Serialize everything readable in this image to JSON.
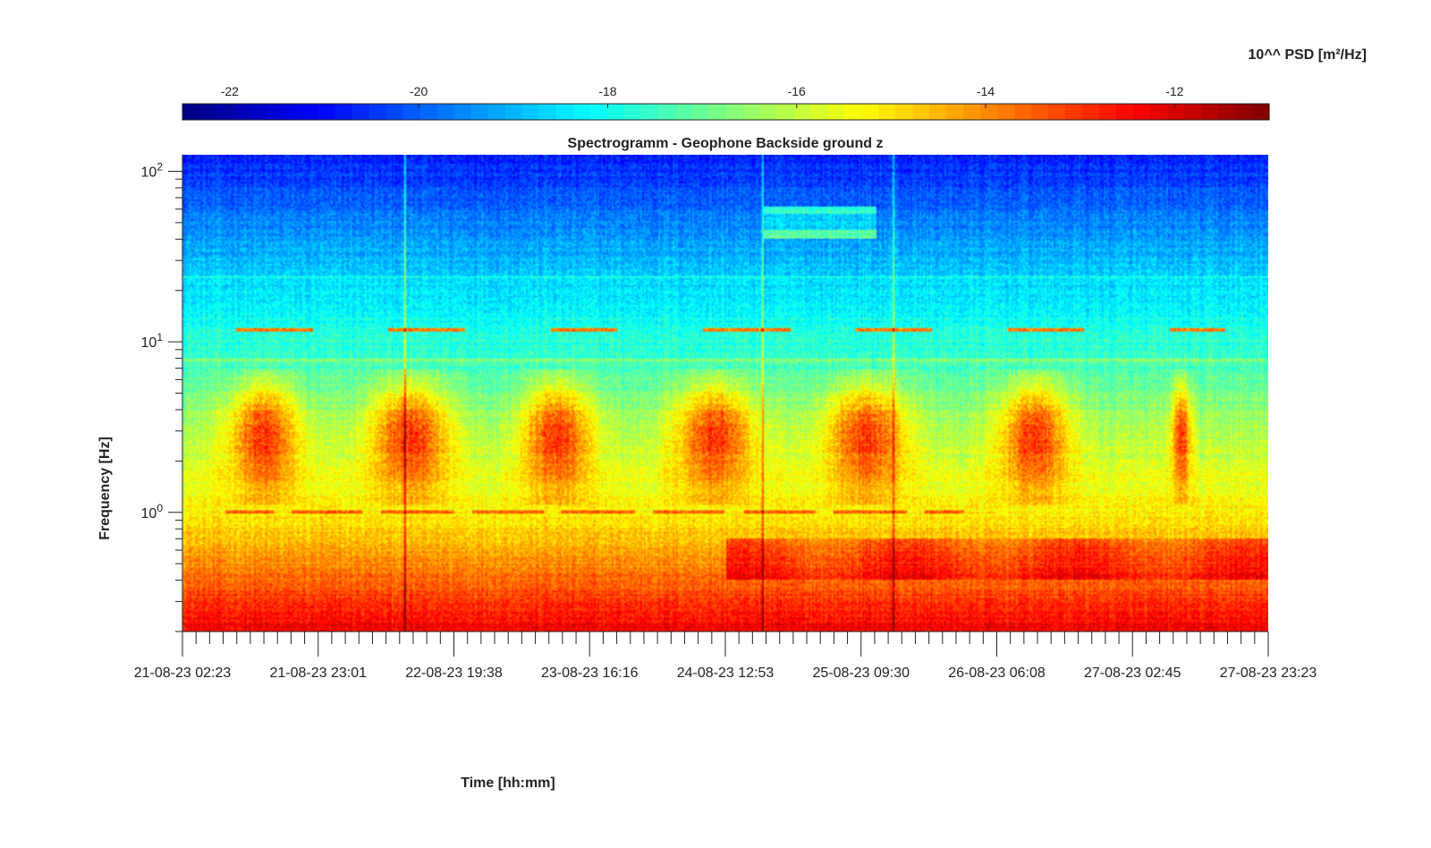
{
  "chart_data": {
    "type": "heatmap",
    "title": "Spectrogramm - Geophone Backside ground z",
    "xlabel": "Time [hh:mm]",
    "ylabel": "Frequency [Hz]",
    "colorbar": {
      "label": "10^^ PSD [m²/Hz]",
      "range": [
        -22.5,
        -11
      ],
      "ticks": [
        -22,
        -20,
        -18,
        -16,
        -14,
        -12
      ],
      "tick_labels": [
        "-22",
        "-20",
        "-18",
        "-16",
        "-14",
        "-12"
      ],
      "colormap": "jet",
      "placement": "top"
    },
    "x_axis": {
      "tick_labels": [
        "21-08-23 02:23",
        "21-08-23 23:01",
        "22-08-23 19:38",
        "23-08-23 16:16",
        "24-08-23 12:53",
        "25-08-23 09:30",
        "26-08-23 06:08",
        "27-08-23 02:45",
        "27-08-23 23:23"
      ],
      "minor_ticks_per_major": 10
    },
    "y_axis": {
      "scale": "log",
      "range": [
        0.2,
        125
      ],
      "ticks": [
        1,
        10,
        100
      ],
      "tick_base": "10",
      "tick_exponents": [
        "0",
        "1",
        "2"
      ]
    },
    "features": {
      "background_psd_by_freq": [
        {
          "f": 0.2,
          "psd": -12.3
        },
        {
          "f": 0.3,
          "psd": -13.0
        },
        {
          "f": 0.5,
          "psd": -14.0
        },
        {
          "f": 1.0,
          "psd": -15.2
        },
        {
          "f": 3.0,
          "psd": -16.2
        },
        {
          "f": 8.0,
          "psd": -17.5
        },
        {
          "f": 20.0,
          "psd": -18.5
        },
        {
          "f": 50.0,
          "psd": -19.6
        },
        {
          "f": 125.0,
          "psd": -20.8
        }
      ],
      "tonal_line_hz": 11.7,
      "tonal_line_intervals": [
        [
          0.05,
          0.12
        ],
        [
          0.19,
          0.26
        ],
        [
          0.34,
          0.4
        ],
        [
          0.48,
          0.56
        ],
        [
          0.62,
          0.69
        ],
        [
          0.76,
          0.83
        ],
        [
          0.91,
          0.96
        ]
      ],
      "microseism_band_hz": [
        2.0,
        5.0
      ],
      "microseism_bursts": [
        [
          0.04,
          0.11
        ],
        [
          0.17,
          0.25
        ],
        [
          0.31,
          0.38
        ],
        [
          0.45,
          0.53
        ],
        [
          0.59,
          0.67
        ],
        [
          0.75,
          0.82
        ],
        [
          0.91,
          0.93
        ]
      ],
      "line_1hz_interval": [
        0.04,
        0.72
      ],
      "broad_band_hz": [
        0.4,
        0.7
      ],
      "broad_band_interval": [
        0.5,
        1.0
      ],
      "high_freq_event_hz": [
        40,
        62
      ],
      "high_freq_event_interval": [
        0.535,
        0.64
      ],
      "transients_x": [
        0.205,
        0.535,
        0.655
      ]
    }
  }
}
